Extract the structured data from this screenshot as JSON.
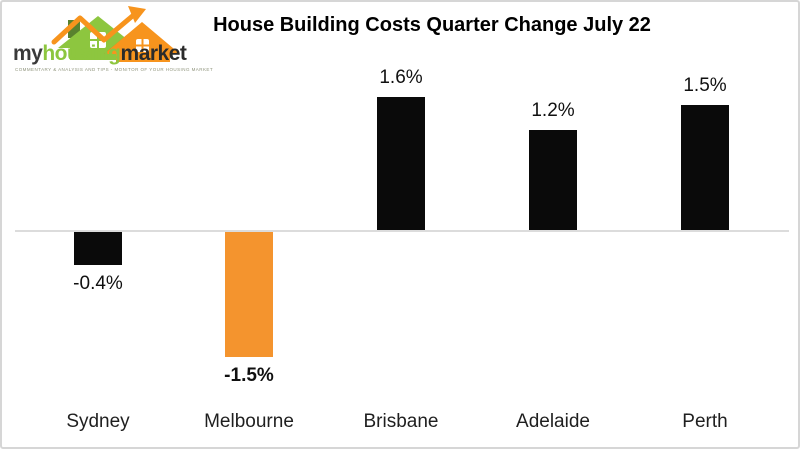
{
  "logo": {
    "text_parts": [
      {
        "text": "my",
        "color": "#3a3a3a"
      },
      {
        "text": "housing",
        "color": "#8dc63f"
      },
      {
        "text": "market",
        "color": "#2b2b2b"
      }
    ],
    "tagline": "COMMENTARY & ANALYSIS AND TIPS   -   MONITOR OF YOUR HOUSING MARKET",
    "colors": {
      "light_green": "#8dc63f",
      "dark_green": "#55832d",
      "orange": "#f7941d"
    }
  },
  "title": "House Building Costs Quarter Change July 22",
  "chart_data": {
    "type": "bar",
    "title": "House Building Costs Quarter Change July 22",
    "categories": [
      "Sydney",
      "Melbourne",
      "Brisbane",
      "Adelaide",
      "Perth"
    ],
    "values": [
      -0.4,
      -1.5,
      1.6,
      1.2,
      1.5
    ],
    "data_labels": [
      "-0.4%",
      "-1.5%",
      "1.6%",
      "1.2%",
      "1.5%"
    ],
    "label_bold": [
      false,
      true,
      false,
      false,
      false
    ],
    "bar_colors": [
      "#0a0a0a",
      "#f4942e",
      "#0a0a0a",
      "#0a0a0a",
      "#0a0a0a"
    ],
    "xlabel": "",
    "ylabel": "",
    "ylim": [
      -2,
      2
    ],
    "baseline": 0,
    "grid": false,
    "legend": null,
    "axis_line_color": "#dcdcdc"
  }
}
